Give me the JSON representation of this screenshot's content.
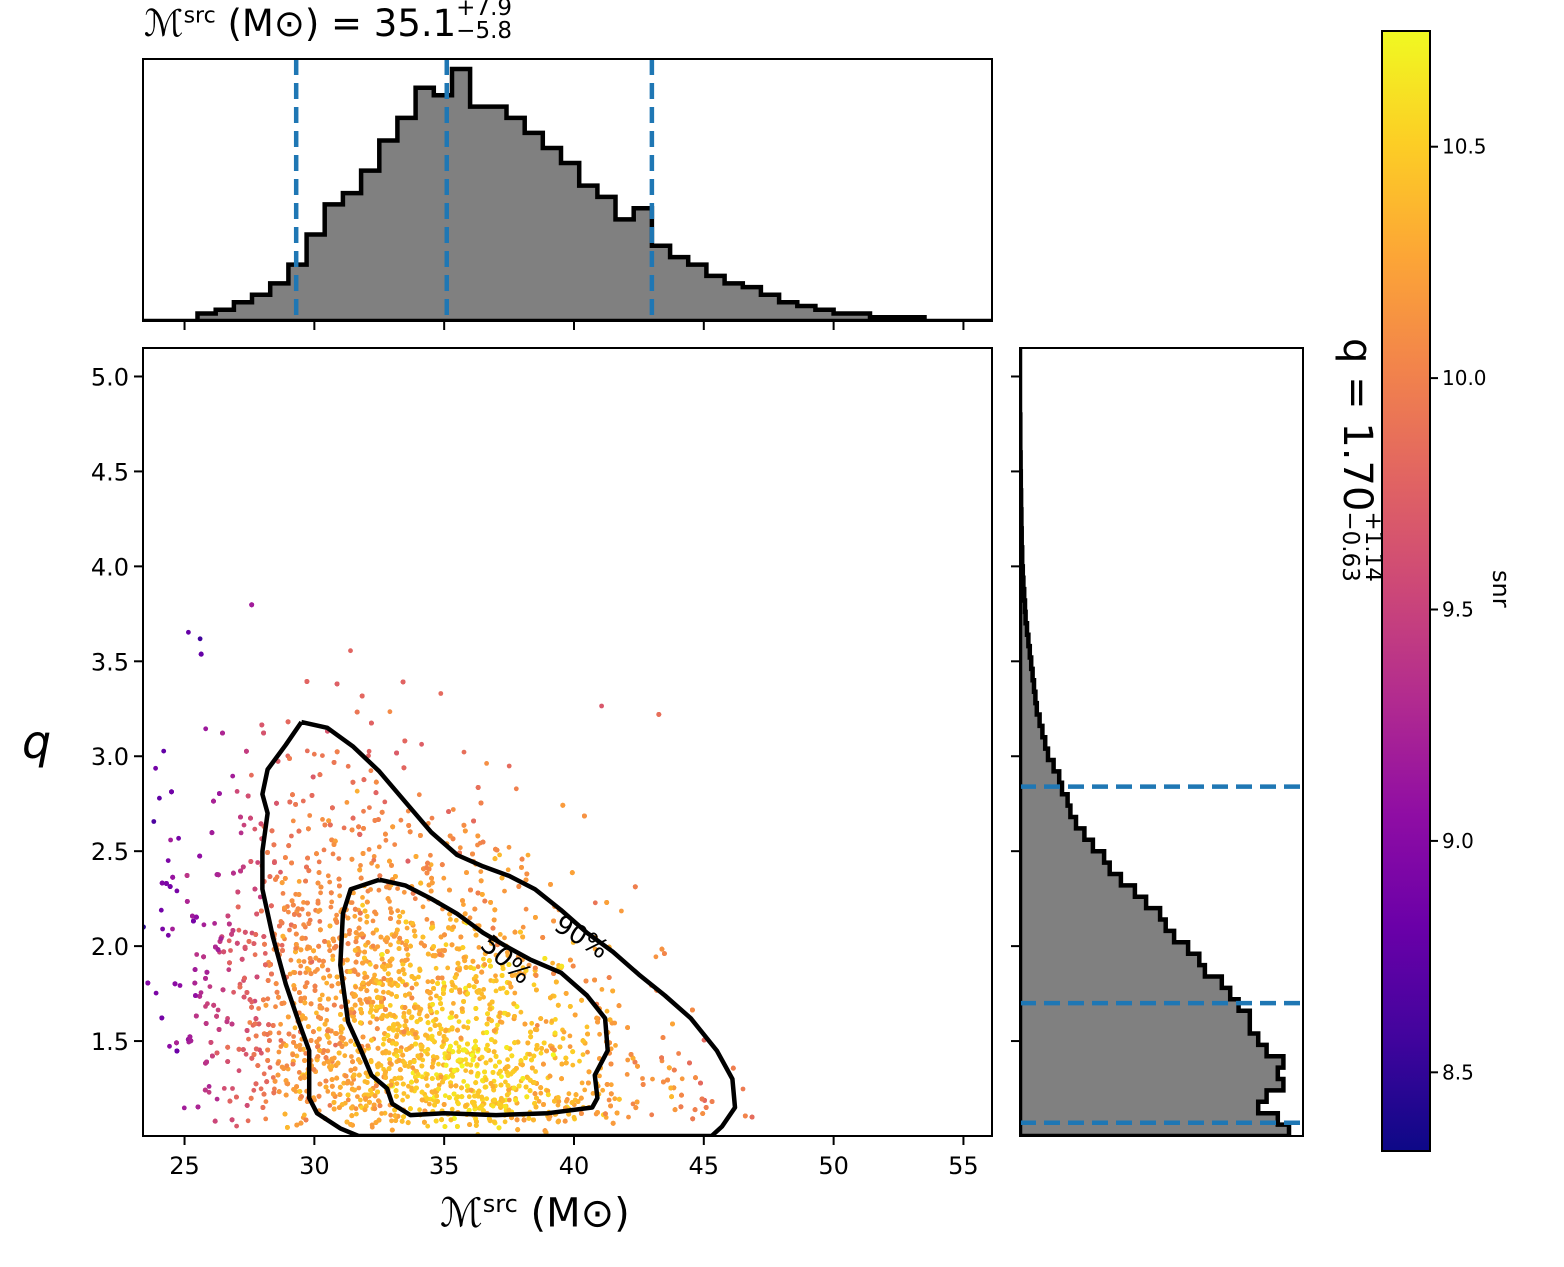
{
  "chart_data": {
    "type": "scatter",
    "title": {
      "prefix": "ℳ",
      "sup": "src",
      "unit": " (M⊙) = 35.1",
      "plus": "+7.9",
      "minus": "−5.8"
    },
    "xlabel": {
      "prefix": "ℳ",
      "sup": "src",
      "unit": " (M⊙)"
    },
    "ylabel": "q",
    "right_label": {
      "prefix": "q = 1.70",
      "plus": "+1.14",
      "minus": "−0.63"
    },
    "colorbar_label": "snr",
    "xlim": [
      23.4,
      56.1
    ],
    "ylim": [
      1.0,
      5.15
    ],
    "xticks": [
      25,
      30,
      35,
      40,
      45,
      50,
      55
    ],
    "xtick_labels": [
      "25",
      "30",
      "35",
      "40",
      "45",
      "50",
      "55"
    ],
    "yticks": [
      1.5,
      2.0,
      2.5,
      3.0,
      3.5,
      4.0,
      4.5,
      5.0
    ],
    "ytick_labels": [
      "1.5",
      "2.0",
      "2.5",
      "3.0",
      "3.5",
      "4.0",
      "4.5",
      "5.0"
    ],
    "colorbar": {
      "range": [
        8.33,
        10.75
      ],
      "ticks": [
        8.5,
        9.0,
        9.5,
        10.0,
        10.5
      ],
      "tick_labels": [
        "8.5",
        "9.0",
        "9.5",
        "10.0",
        "10.5"
      ],
      "colormap": "plasma"
    },
    "mchirp_quantiles": [
      29.3,
      35.1,
      43.0
    ],
    "q_quantiles": [
      1.07,
      1.7,
      2.84
    ],
    "contours": [
      {
        "label": "50%",
        "points": [
          [
            32.5,
            2.35
          ],
          [
            33.5,
            2.32
          ],
          [
            34.5,
            2.25
          ],
          [
            35.5,
            2.17
          ],
          [
            36.5,
            2.07
          ],
          [
            37.5,
            1.99
          ],
          [
            38.3,
            1.93
          ],
          [
            39.5,
            1.86
          ],
          [
            40.5,
            1.74
          ],
          [
            41.2,
            1.62
          ],
          [
            41.3,
            1.45
          ],
          [
            40.8,
            1.32
          ],
          [
            40.9,
            1.2
          ],
          [
            40.7,
            1.15
          ],
          [
            39,
            1.12
          ],
          [
            37,
            1.11
          ],
          [
            35,
            1.12
          ],
          [
            33.7,
            1.11
          ],
          [
            33,
            1.17
          ],
          [
            32.8,
            1.25
          ],
          [
            32.2,
            1.32
          ],
          [
            31.8,
            1.45
          ],
          [
            31.3,
            1.6
          ],
          [
            31.0,
            1.9
          ],
          [
            31.1,
            2.17
          ],
          [
            31.4,
            2.3
          ],
          [
            32.5,
            2.35
          ]
        ]
      },
      {
        "label": "90%",
        "points": [
          [
            29.5,
            3.18
          ],
          [
            30.5,
            3.15
          ],
          [
            31.5,
            3.05
          ],
          [
            32.5,
            2.92
          ],
          [
            33.5,
            2.76
          ],
          [
            34.5,
            2.6
          ],
          [
            35.5,
            2.48
          ],
          [
            36.5,
            2.42
          ],
          [
            37.5,
            2.37
          ],
          [
            38.5,
            2.3
          ],
          [
            39.5,
            2.19
          ],
          [
            40.5,
            2.07
          ],
          [
            41.5,
            1.97
          ],
          [
            42.5,
            1.85
          ],
          [
            43.5,
            1.74
          ],
          [
            44.5,
            1.62
          ],
          [
            45.5,
            1.45
          ],
          [
            46.1,
            1.3
          ],
          [
            46.2,
            1.15
          ],
          [
            45.7,
            1.05
          ],
          [
            45.3,
            1.0
          ],
          [
            31.7,
            1.0
          ],
          [
            31.0,
            1.04
          ],
          [
            30.1,
            1.12
          ],
          [
            29.8,
            1.2
          ],
          [
            29.8,
            1.45
          ],
          [
            29.4,
            1.6
          ],
          [
            28.9,
            1.8
          ],
          [
            28.4,
            2.05
          ],
          [
            28.0,
            2.3
          ],
          [
            28.0,
            2.5
          ],
          [
            28.2,
            2.7
          ],
          [
            28.0,
            2.8
          ],
          [
            28.2,
            2.93
          ],
          [
            28.9,
            3.06
          ],
          [
            29.5,
            3.18
          ]
        ]
      }
    ],
    "mchirp_hist": {
      "bin_edges": [
        23.4,
        24.1,
        24.8,
        25.5,
        26.2,
        26.9,
        27.6,
        28.3,
        29.0,
        29.7,
        30.4,
        31.1,
        31.8,
        32.5,
        33.2,
        33.9,
        34.6,
        35.3,
        36.0,
        36.7,
        37.4,
        38.1,
        38.8,
        39.5,
        40.2,
        40.9,
        41.6,
        42.3,
        43.0,
        43.7,
        44.4,
        45.1,
        45.8,
        46.5,
        47.2,
        47.9,
        48.6,
        49.3,
        50.0,
        50.7,
        51.4,
        52.1,
        52.8,
        53.5,
        54.2,
        54.9,
        55.6,
        56.1
      ],
      "density": [
        0.0,
        0.0,
        0.0,
        0.02,
        0.03,
        0.05,
        0.07,
        0.1,
        0.15,
        0.23,
        0.31,
        0.34,
        0.4,
        0.48,
        0.54,
        0.62,
        0.6,
        0.67,
        0.57,
        0.57,
        0.54,
        0.5,
        0.46,
        0.42,
        0.36,
        0.33,
        0.27,
        0.3,
        0.2,
        0.17,
        0.15,
        0.12,
        0.1,
        0.09,
        0.07,
        0.05,
        0.04,
        0.03,
        0.02,
        0.02,
        0.01,
        0.01,
        0.01,
        0.0,
        0.0,
        0.0,
        0.0
      ]
    },
    "q_hist": {
      "bin_edges": [
        1.0,
        1.06,
        1.12,
        1.18,
        1.24,
        1.3,
        1.36,
        1.42,
        1.48,
        1.54,
        1.6,
        1.66,
        1.72,
        1.78,
        1.84,
        1.9,
        1.96,
        2.02,
        2.08,
        2.14,
        2.2,
        2.26,
        2.32,
        2.38,
        2.44,
        2.5,
        2.56,
        2.62,
        2.68,
        2.74,
        2.8,
        2.86,
        2.92,
        2.98,
        3.04,
        3.1,
        3.16,
        3.22,
        3.28,
        3.34,
        3.4,
        3.46,
        3.52,
        3.58,
        3.64,
        3.7,
        3.76,
        3.82,
        3.88,
        3.94,
        4.0,
        4.1,
        4.2,
        4.3,
        4.4,
        4.5,
        4.6,
        4.8,
        5.0,
        5.15
      ],
      "density": [
        0.96,
        0.92,
        0.85,
        0.88,
        0.94,
        0.92,
        0.94,
        0.88,
        0.85,
        0.82,
        0.82,
        0.78,
        0.75,
        0.72,
        0.66,
        0.64,
        0.6,
        0.55,
        0.52,
        0.5,
        0.45,
        0.41,
        0.36,
        0.32,
        0.3,
        0.26,
        0.23,
        0.2,
        0.18,
        0.17,
        0.15,
        0.14,
        0.12,
        0.1,
        0.09,
        0.08,
        0.07,
        0.06,
        0.055,
        0.05,
        0.045,
        0.04,
        0.035,
        0.03,
        0.025,
        0.02,
        0.018,
        0.015,
        0.012,
        0.01,
        0.008,
        0.006,
        0.005,
        0.004,
        0.003,
        0.002,
        0.001,
        0.0,
        0.0
      ]
    }
  }
}
